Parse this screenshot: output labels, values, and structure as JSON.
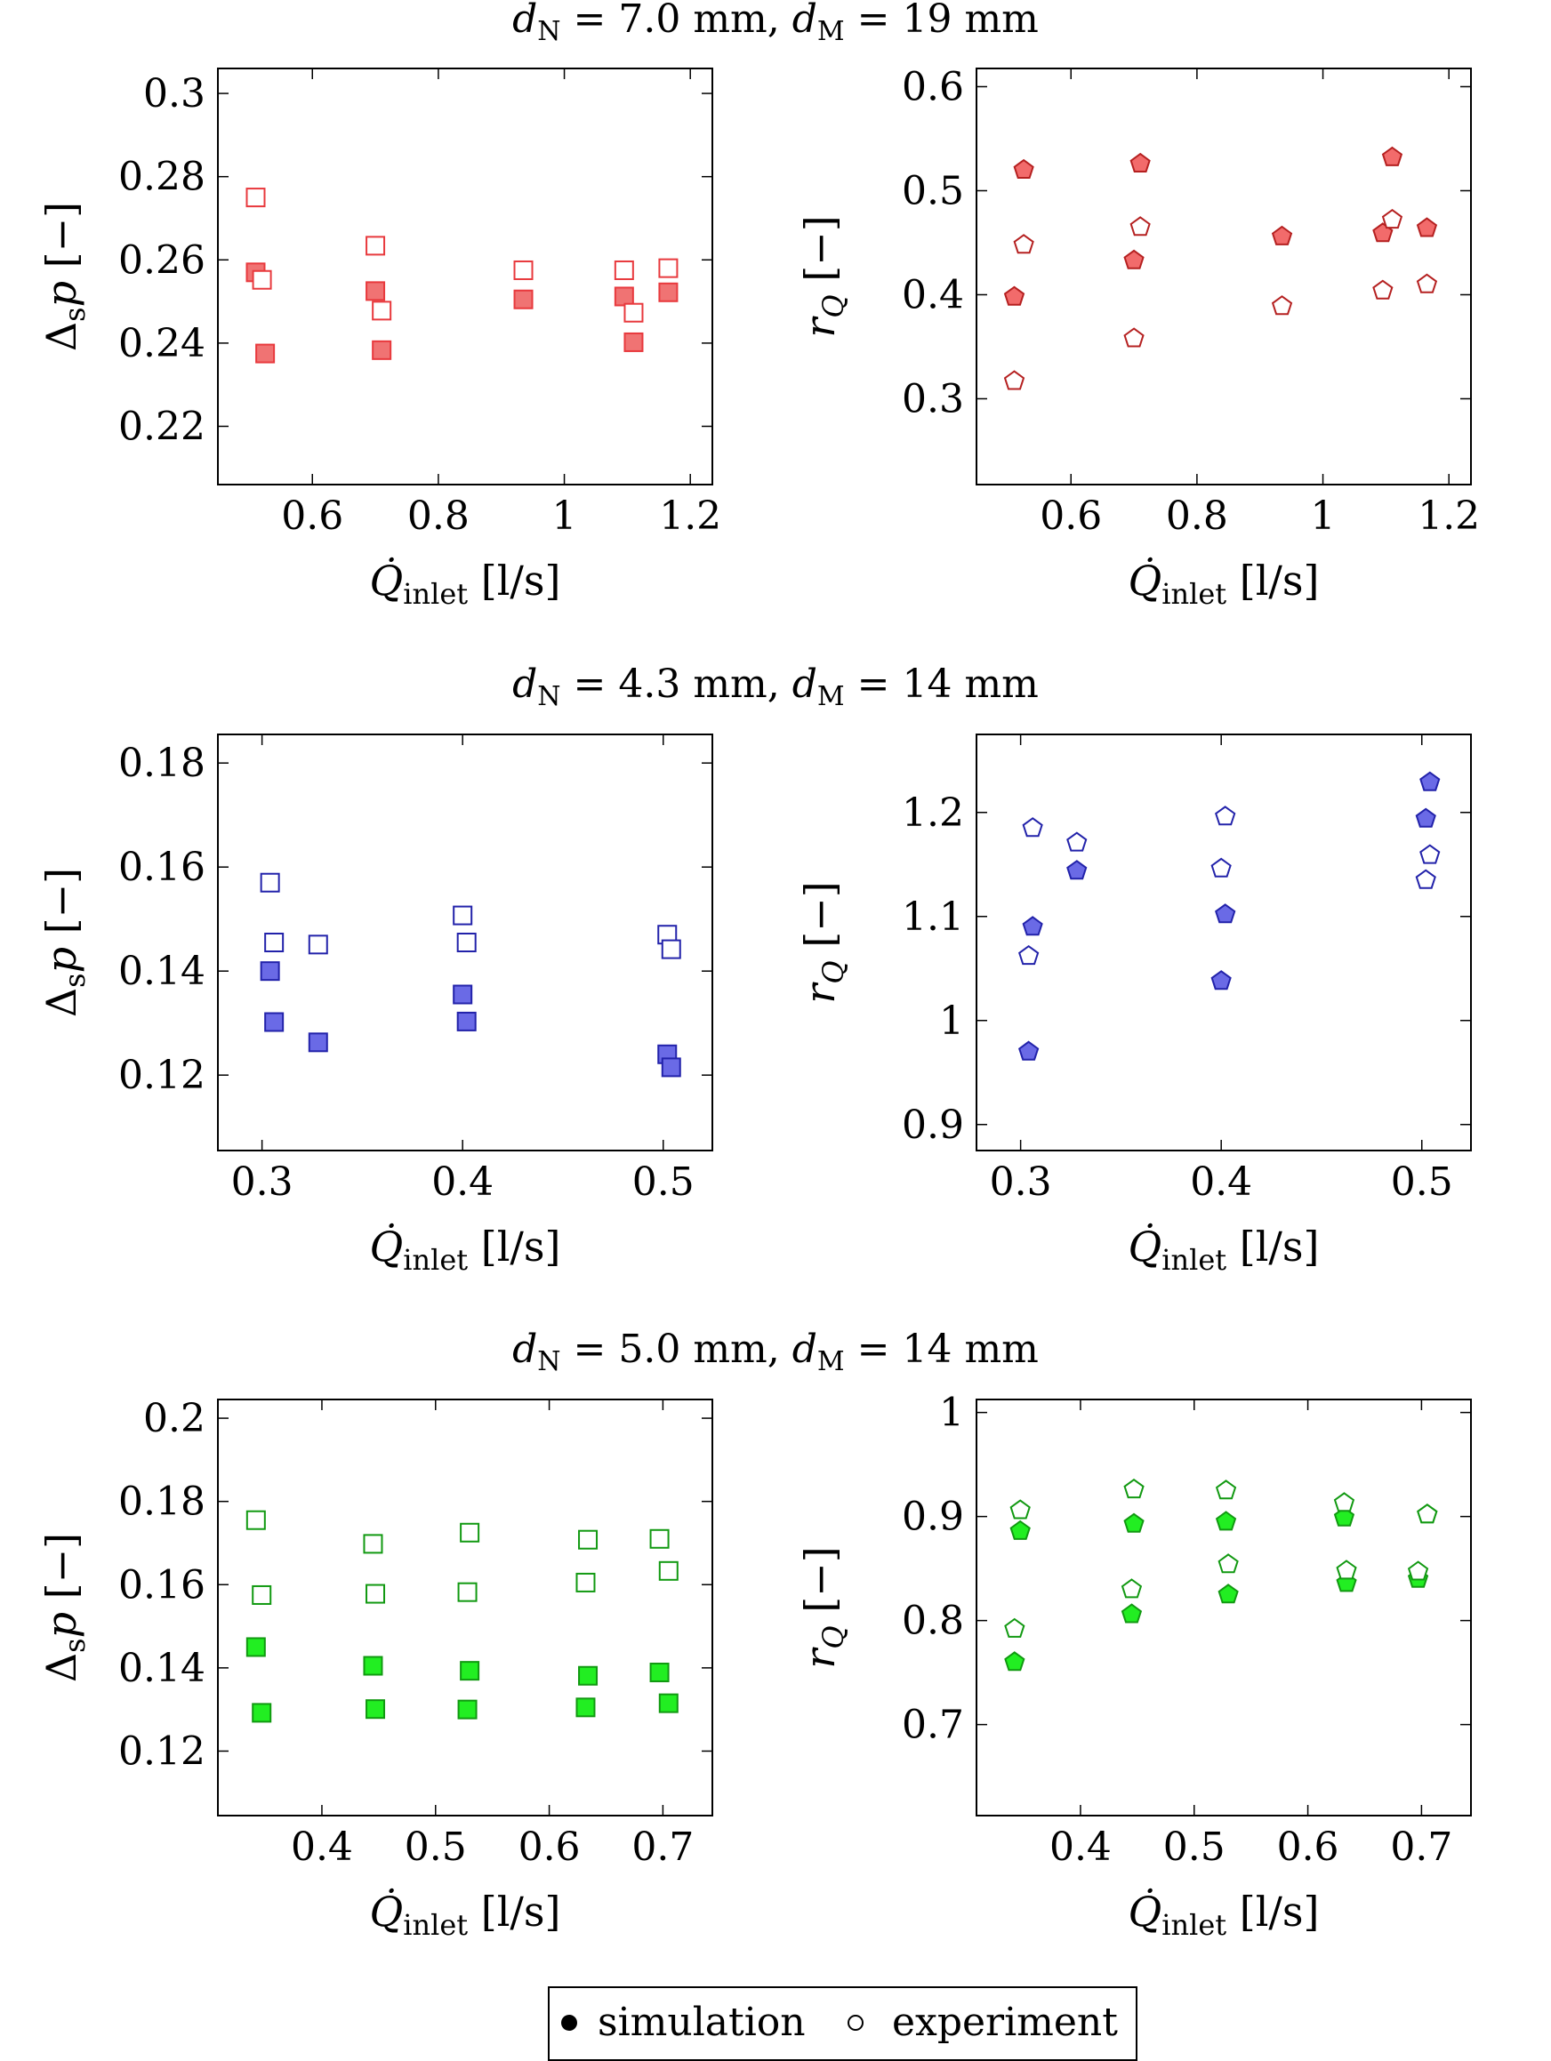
{
  "chart_data": [
    {
      "type": "scatter",
      "row": 0,
      "col": 0,
      "row_title": "dN = 7.0 mm,  dM = 19 mm",
      "xlabel": "Q̇inlet [l/s]",
      "ylabel": "Δsp [−]",
      "xlim": [
        0.45,
        1.235
      ],
      "ylim": [
        0.206,
        0.306
      ],
      "xticks": [
        0.6,
        0.8,
        1,
        1.2
      ],
      "xtick_labels": [
        "0.6",
        "0.8",
        "1",
        "1.2"
      ],
      "yticks": [
        0.22,
        0.24,
        0.26,
        0.28,
        0.3
      ],
      "ytick_labels": [
        "0.22",
        "0.24",
        "0.26",
        "0.28",
        "0.3"
      ],
      "marker": "square",
      "color": "#e8393d",
      "fill": "#f07373",
      "series": [
        {
          "name": "simulation",
          "filled": true,
          "points": [
            [
              0.51,
              0.257
            ],
            [
              0.525,
              0.2375
            ],
            [
              0.7,
              0.2525
            ],
            [
              0.71,
              0.2383
            ],
            [
              0.935,
              0.2505
            ],
            [
              1.095,
              0.2512
            ],
            [
              1.11,
              0.2402
            ],
            [
              1.165,
              0.2522
            ]
          ]
        },
        {
          "name": "experiment",
          "filled": false,
          "points": [
            [
              0.51,
              0.275
            ],
            [
              0.52,
              0.2552
            ],
            [
              0.7,
              0.2634
            ],
            [
              0.71,
              0.2478
            ],
            [
              0.935,
              0.2575
            ],
            [
              1.095,
              0.2575
            ],
            [
              1.11,
              0.2473
            ],
            [
              1.165,
              0.258
            ]
          ]
        }
      ]
    },
    {
      "type": "scatter",
      "row": 0,
      "col": 1,
      "xlabel": "Q̇inlet [l/s]",
      "ylabel": "rQ [−]",
      "xlim": [
        0.45,
        1.235
      ],
      "ylim": [
        0.2175,
        0.6175
      ],
      "xticks": [
        0.6,
        0.8,
        1,
        1.2
      ],
      "xtick_labels": [
        "0.6",
        "0.8",
        "1",
        "1.2"
      ],
      "yticks": [
        0.3,
        0.4,
        0.5,
        0.6
      ],
      "ytick_labels": [
        "0.3",
        "0.4",
        "0.5",
        "0.6"
      ],
      "marker": "pentagon",
      "color": "#b52020",
      "fill": "#f26b6b",
      "series": [
        {
          "name": "simulation",
          "filled": true,
          "points": [
            [
              0.51,
              0.398
            ],
            [
              0.525,
              0.52
            ],
            [
              0.7,
              0.433
            ],
            [
              0.71,
              0.526
            ],
            [
              0.935,
              0.456
            ],
            [
              1.095,
              0.459
            ],
            [
              1.11,
              0.532
            ],
            [
              1.165,
              0.464
            ]
          ]
        },
        {
          "name": "experiment",
          "filled": false,
          "points": [
            [
              0.51,
              0.317
            ],
            [
              0.525,
              0.448
            ],
            [
              0.7,
              0.358
            ],
            [
              0.71,
              0.465
            ],
            [
              0.935,
              0.389
            ],
            [
              1.095,
              0.404
            ],
            [
              1.11,
              0.472
            ],
            [
              1.165,
              0.41
            ]
          ]
        }
      ]
    },
    {
      "type": "scatter",
      "row": 1,
      "col": 0,
      "row_title": "dN = 4.3 mm,  dM = 14 mm",
      "xlabel": "Q̇inlet [l/s]",
      "ylabel": "Δsp [−]",
      "xlim": [
        0.278,
        0.5245
      ],
      "ylim": [
        0.1055,
        0.1855
      ],
      "xticks": [
        0.3,
        0.4,
        0.5
      ],
      "xtick_labels": [
        "0.3",
        "0.4",
        "0.5"
      ],
      "yticks": [
        0.12,
        0.14,
        0.16,
        0.18
      ],
      "ytick_labels": [
        "0.12",
        "0.14",
        "0.16",
        "0.18"
      ],
      "marker": "square",
      "color": "#2222aa",
      "fill": "#6a6ae6",
      "series": [
        {
          "name": "simulation",
          "filled": true,
          "points": [
            [
              0.304,
              0.14
            ],
            [
              0.306,
              0.1302
            ],
            [
              0.328,
              0.1263
            ],
            [
              0.4,
              0.1355
            ],
            [
              0.402,
              0.1303
            ],
            [
              0.502,
              0.124
            ],
            [
              0.504,
              0.1215
            ]
          ]
        },
        {
          "name": "experiment",
          "filled": false,
          "points": [
            [
              0.304,
              0.157
            ],
            [
              0.306,
              0.1455
            ],
            [
              0.328,
              0.1451
            ],
            [
              0.4,
              0.1507
            ],
            [
              0.402,
              0.1455
            ],
            [
              0.502,
              0.147
            ],
            [
              0.504,
              0.1442
            ]
          ]
        }
      ]
    },
    {
      "type": "scatter",
      "row": 1,
      "col": 1,
      "xlabel": "Q̇inlet [l/s]",
      "ylabel": "rQ [−]",
      "xlim": [
        0.278,
        0.5245
      ],
      "ylim": [
        0.875,
        1.275
      ],
      "xticks": [
        0.3,
        0.4,
        0.5
      ],
      "xtick_labels": [
        "0.3",
        "0.4",
        "0.5"
      ],
      "yticks": [
        0.9,
        1,
        1.1,
        1.2
      ],
      "ytick_labels": [
        "0.9",
        "1",
        "1.1",
        "1.2"
      ],
      "marker": "pentagon",
      "color": "#2222aa",
      "fill": "#6a6ae6",
      "series": [
        {
          "name": "simulation",
          "filled": true,
          "points": [
            [
              0.304,
              0.97
            ],
            [
              0.306,
              1.09
            ],
            [
              0.328,
              1.144
            ],
            [
              0.4,
              1.038
            ],
            [
              0.402,
              1.102
            ],
            [
              0.502,
              1.194
            ],
            [
              0.504,
              1.229
            ]
          ]
        },
        {
          "name": "experiment",
          "filled": false,
          "points": [
            [
              0.304,
              1.062
            ],
            [
              0.306,
              1.185
            ],
            [
              0.328,
              1.171
            ],
            [
              0.4,
              1.146
            ],
            [
              0.402,
              1.196
            ],
            [
              0.502,
              1.135
            ],
            [
              0.504,
              1.159
            ]
          ]
        }
      ]
    },
    {
      "type": "scatter",
      "row": 2,
      "col": 0,
      "row_title": "dN = 5.0 mm,  dM = 14 mm",
      "xlabel": "Q̇inlet [l/s]",
      "ylabel": "Δsp [−]",
      "xlim": [
        0.3085,
        0.7435
      ],
      "ylim": [
        0.1045,
        0.2045
      ],
      "xticks": [
        0.4,
        0.5,
        0.6,
        0.7
      ],
      "xtick_labels": [
        "0.4",
        "0.5",
        "0.6",
        "0.7"
      ],
      "yticks": [
        0.12,
        0.14,
        0.16,
        0.18,
        0.2
      ],
      "ytick_labels": [
        "0.12",
        "0.14",
        "0.16",
        "0.18",
        "0.2"
      ],
      "marker": "square",
      "color": "#119911",
      "fill": "#22ee22",
      "series": [
        {
          "name": "simulation",
          "filled": true,
          "points": [
            [
              0.342,
              0.145
            ],
            [
              0.347,
              0.1292
            ],
            [
              0.445,
              0.1405
            ],
            [
              0.447,
              0.1301
            ],
            [
              0.53,
              0.1393
            ],
            [
              0.528,
              0.13
            ],
            [
              0.634,
              0.1381
            ],
            [
              0.632,
              0.1305
            ],
            [
              0.697,
              0.1389
            ],
            [
              0.705,
              0.1315
            ]
          ]
        },
        {
          "name": "experiment",
          "filled": false,
          "points": [
            [
              0.342,
              0.1755
            ],
            [
              0.347,
              0.1575
            ],
            [
              0.445,
              0.1698
            ],
            [
              0.447,
              0.1578
            ],
            [
              0.53,
              0.1725
            ],
            [
              0.528,
              0.1582
            ],
            [
              0.634,
              0.1708
            ],
            [
              0.632,
              0.1605
            ],
            [
              0.697,
              0.171
            ],
            [
              0.705,
              0.1633
            ]
          ]
        }
      ]
    },
    {
      "type": "scatter",
      "row": 2,
      "col": 1,
      "xlabel": "Q̇inlet [l/s]",
      "ylabel": "rQ [−]",
      "xlim": [
        0.3085,
        0.7435
      ],
      "ylim": [
        0.6125,
        1.0125
      ],
      "xticks": [
        0.4,
        0.5,
        0.6,
        0.7
      ],
      "xtick_labels": [
        "0.4",
        "0.5",
        "0.6",
        "0.7"
      ],
      "yticks": [
        0.7,
        0.8,
        0.9,
        1
      ],
      "ytick_labels": [
        "0.7",
        "0.8",
        "0.9",
        "1"
      ],
      "marker": "pentagon",
      "color": "#119911",
      "fill": "#22ee22",
      "series": [
        {
          "name": "simulation",
          "filled": true,
          "points": [
            [
              0.342,
              0.76
            ],
            [
              0.347,
              0.886
            ],
            [
              0.445,
              0.806
            ],
            [
              0.447,
              0.893
            ],
            [
              0.53,
              0.825
            ],
            [
              0.528,
              0.895
            ],
            [
              0.634,
              0.836
            ],
            [
              0.632,
              0.899
            ],
            [
              0.697,
              0.84
            ],
            [
              0.705,
              0.902
            ]
          ]
        },
        {
          "name": "experiment",
          "filled": false,
          "points": [
            [
              0.342,
              0.792
            ],
            [
              0.347,
              0.906
            ],
            [
              0.445,
              0.83
            ],
            [
              0.447,
              0.926
            ],
            [
              0.53,
              0.854
            ],
            [
              0.528,
              0.925
            ],
            [
              0.634,
              0.848
            ],
            [
              0.632,
              0.913
            ],
            [
              0.697,
              0.847
            ],
            [
              0.705,
              0.902
            ]
          ]
        }
      ]
    }
  ],
  "legend": {
    "placement": "bottom-center",
    "entries": [
      {
        "label": "simulation",
        "filled": true
      },
      {
        "label": "experiment",
        "filled": false
      }
    ]
  }
}
